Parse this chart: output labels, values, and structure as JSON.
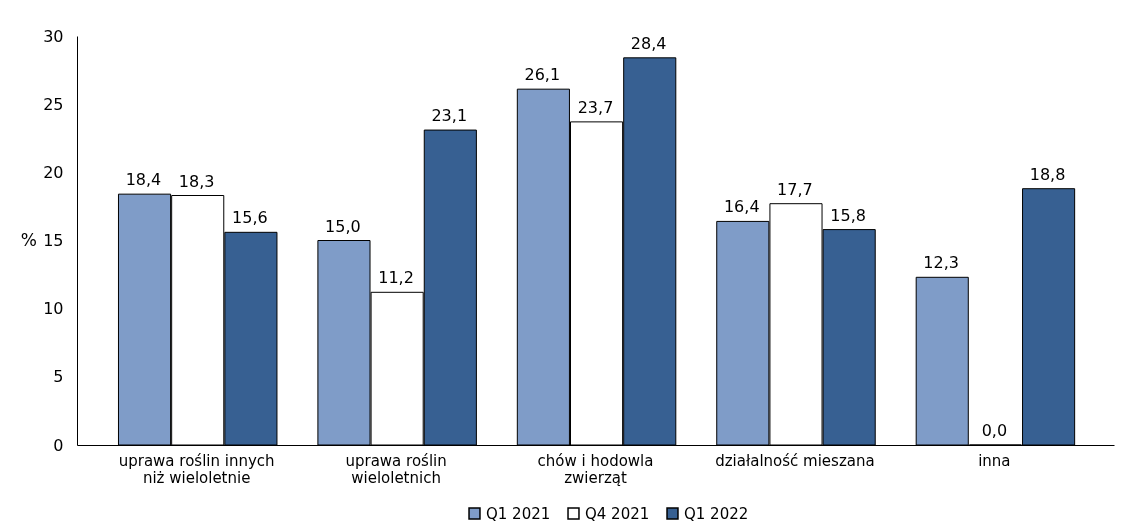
{
  "chart_data": {
    "type": "bar",
    "ylabel": "%",
    "categories": [
      "uprawa roślin innych niż wieloletnie",
      "uprawa roślin wieloletnich",
      "chów i hodowla zwierząt",
      "działalność mieszana",
      "inna"
    ],
    "series": [
      {
        "name": "Q1 2021",
        "color": "#7f9cc8",
        "values": [
          18.4,
          15.0,
          26.1,
          16.4,
          12.3
        ],
        "value_labels": [
          "18,4",
          "15,0",
          "26,1",
          "16,4",
          "12,3"
        ]
      },
      {
        "name": "Q4 2021",
        "color": "#ffffff",
        "values": [
          18.3,
          11.2,
          23.7,
          17.7,
          0.0
        ],
        "value_labels": [
          "18,3",
          "11,2",
          "23,7",
          "17,7",
          "0,0"
        ]
      },
      {
        "name": "Q1 2022",
        "color": "#376092",
        "values": [
          15.6,
          23.1,
          28.4,
          15.8,
          18.8
        ],
        "value_labels": [
          "15,6",
          "23,1",
          "28,4",
          "15,8",
          "18,8"
        ]
      }
    ],
    "ylim": [
      0,
      30
    ],
    "yticks": [
      0,
      5,
      10,
      15,
      20,
      25,
      30
    ],
    "grid": false,
    "legend": "bottom"
  }
}
